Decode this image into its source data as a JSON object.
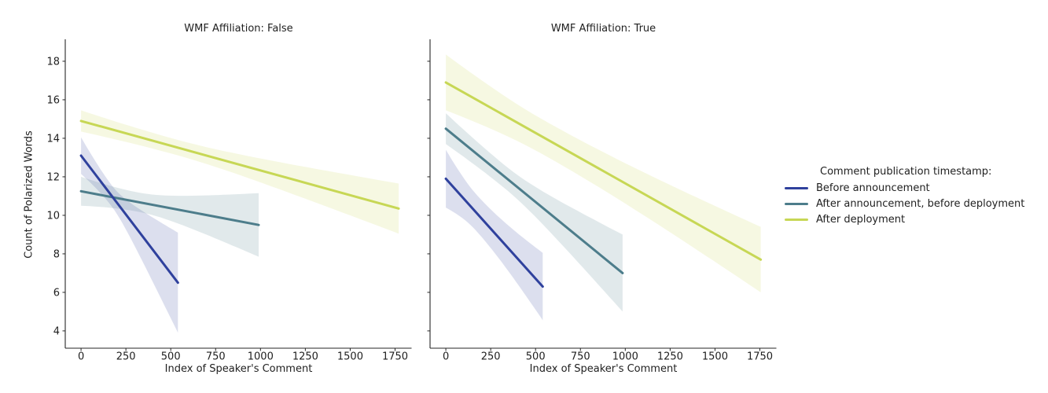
{
  "figure": {
    "background": "#ffffff",
    "text_color": "#1f1f1f",
    "axis_color": "#262626"
  },
  "chart_data": {
    "type": "line",
    "subtype": "faceted linear regression fits with 95% confidence bands",
    "xlabel": "Index of Speaker's Comment",
    "ylabel": "Count of Polarized Words",
    "x_ticks": [
      0,
      250,
      500,
      750,
      1000,
      1250,
      1500,
      1750
    ],
    "y_ticks": [
      4,
      6,
      8,
      10,
      12,
      14,
      16,
      18
    ],
    "x_range": [
      -88,
      1842
    ],
    "y_range": [
      3.1,
      19.14
    ],
    "grid": false,
    "band_opacity": 0.17,
    "legend": {
      "title": "Comment publication timestamp:",
      "position": "right",
      "entries": [
        {
          "label": "Before announcement",
          "color": "#2f419d"
        },
        {
          "label": "After announcement, before deployment",
          "color": "#4d7d8b"
        },
        {
          "label": "After deployment",
          "color": "#c7d755"
        }
      ]
    },
    "facets": [
      {
        "title": "WMF Affiliation: False",
        "series": [
          {
            "name": "Before announcement",
            "color": "#2f419d",
            "regression_line": {
              "x": [
                0,
                540
              ],
              "y": [
                13.1,
                6.5
              ]
            },
            "ci_band": {
              "waist_x": 170,
              "half_width_start": 0.95,
              "half_width_waist": 0.55,
              "half_width_end": 2.6
            }
          },
          {
            "name": "After announcement, before deployment",
            "color": "#4d7d8b",
            "regression_line": {
              "x": [
                0,
                990
              ],
              "y": [
                11.25,
                9.5
              ]
            },
            "ci_band": {
              "waist_x": 320,
              "half_width_start": 0.75,
              "half_width_waist": 0.5,
              "half_width_end": 1.65
            }
          },
          {
            "name": "After deployment",
            "color": "#c7d755",
            "regression_line": {
              "x": [
                0,
                1770
              ],
              "y": [
                14.9,
                10.35
              ]
            },
            "ci_band": {
              "waist_x": 520,
              "half_width_start": 0.55,
              "half_width_waist": 0.4,
              "half_width_end": 1.3
            }
          }
        ]
      },
      {
        "title": "WMF Affiliation: True",
        "series": [
          {
            "name": "Before announcement",
            "color": "#2f419d",
            "regression_line": {
              "x": [
                0,
                540
              ],
              "y": [
                11.9,
                6.3
              ]
            },
            "ci_band": {
              "waist_x": 170,
              "half_width_start": 1.5,
              "half_width_waist": 0.95,
              "half_width_end": 1.75
            }
          },
          {
            "name": "After announcement, before deployment",
            "color": "#4d7d8b",
            "regression_line": {
              "x": [
                0,
                985
              ],
              "y": [
                14.5,
                7.0
              ]
            },
            "ci_band": {
              "waist_x": 330,
              "half_width_start": 0.8,
              "half_width_waist": 0.6,
              "half_width_end": 2.0
            }
          },
          {
            "name": "After deployment",
            "color": "#c7d755",
            "regression_line": {
              "x": [
                0,
                1755
              ],
              "y": [
                16.9,
                7.7
              ]
            },
            "ci_band": {
              "waist_x": 550,
              "half_width_start": 1.45,
              "half_width_waist": 0.9,
              "half_width_end": 1.7
            }
          }
        ]
      }
    ]
  }
}
